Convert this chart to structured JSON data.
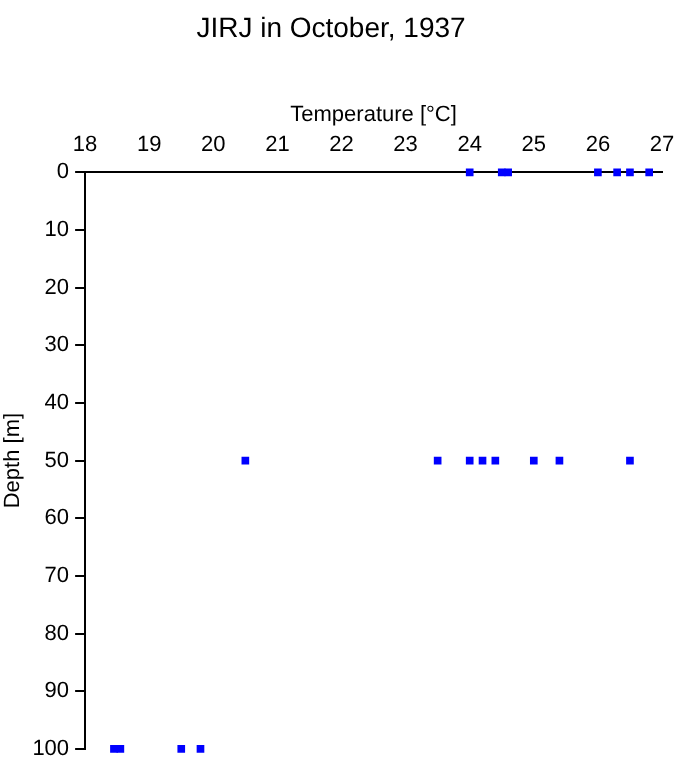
{
  "chart_data": {
    "type": "scatter",
    "title": "JIRJ in October, 1937",
    "xlabel": "Temperature [°C]",
    "ylabel": "Depth [m]",
    "x": [
      24.0,
      24.5,
      24.6,
      26.0,
      26.3,
      26.5,
      26.8,
      20.5,
      23.5,
      24.0,
      24.2,
      24.4,
      25.0,
      25.4,
      26.5,
      18.45,
      18.55,
      19.5,
      19.8
    ],
    "values": [
      0,
      0,
      0,
      0,
      0,
      0,
      0,
      50,
      50,
      50,
      50,
      50,
      50,
      50,
      50,
      100,
      100,
      100,
      100
    ],
    "color": "#0000ff",
    "marker": "square",
    "grid": false,
    "legend": false,
    "xlim": [
      18,
      27
    ],
    "xticks": [
      18,
      19,
      20,
      21,
      22,
      23,
      24,
      25,
      26,
      27
    ],
    "ylim": [
      100,
      0
    ],
    "yticks": [
      0,
      10,
      20,
      30,
      40,
      50,
      60,
      70,
      80,
      90,
      100
    ]
  }
}
